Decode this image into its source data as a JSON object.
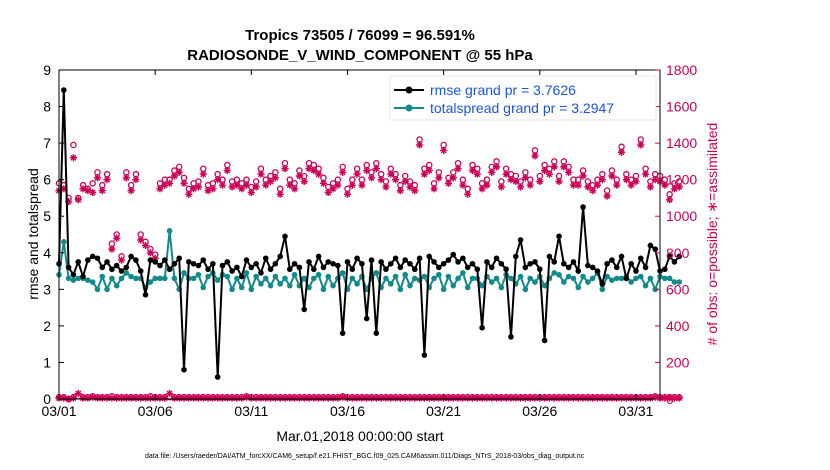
{
  "chart_data": {
    "type": "line",
    "title_line1": "Tropics 73505 / 76099 = 96.591%",
    "title_line2": "RADIOSONDE_V_WIND_COMPONENT @ 55 hPa",
    "xlabel": "Mar.01,2018 00:00:00 start",
    "ylabel": "rmse and totalspread",
    "ylabel_right": "# of obs: o=possible; ∗=assimilated",
    "footnote": "data file: /Users/raeder/DAI/ATM_forcXX/CAM6_setup/f.e21.FHIST_BGC.f09_025.CAM6assim.011/Diags_NTrS_2018-03/obs_diag_output.nc",
    "xlim": [
      1,
      32.25
    ],
    "ylim": [
      0,
      9
    ],
    "ylim_right": [
      0,
      1800
    ],
    "x_ticks": [
      1,
      6,
      11,
      16,
      21,
      26,
      31
    ],
    "x_tick_labels": [
      "03/01",
      "03/06",
      "03/11",
      "03/16",
      "03/21",
      "03/26",
      "03/31"
    ],
    "y_ticks": [
      0,
      1,
      2,
      3,
      4,
      5,
      6,
      7,
      8,
      9
    ],
    "y_ticks_right": [
      0,
      200,
      400,
      600,
      800,
      1000,
      1200,
      1400,
      1600,
      1800
    ],
    "legend": [
      "rmse grand pr = 3.7626",
      "totalspread grand pr = 3.2947"
    ],
    "colors": {
      "rmse": "#000000",
      "spread": "#128a8a",
      "obs": "#cc0055"
    },
    "x_start": 1,
    "x_step": 0.25,
    "series": [
      {
        "name": "rmse",
        "values": [
          3.7,
          8.45,
          3.6,
          3.4,
          3.75,
          3.35,
          3.8,
          3.9,
          3.85,
          3.6,
          3.75,
          3.55,
          3.65,
          3.5,
          3.6,
          3.9,
          3.8,
          3.5,
          2.85,
          3.8,
          3.75,
          3.65,
          3.8,
          3.55,
          3.7,
          3.85,
          0.8,
          3.75,
          3.7,
          3.65,
          3.8,
          3.55,
          3.7,
          0.6,
          3.65,
          3.75,
          3.5,
          3.6,
          3.35,
          3.8,
          3.6,
          3.7,
          3.45,
          3.85,
          3.55,
          3.7,
          3.9,
          4.45,
          3.55,
          3.7,
          3.6,
          2.45,
          3.75,
          3.55,
          3.9,
          3.6,
          3.75,
          3.7,
          3.65,
          1.8,
          3.75,
          3.55,
          3.85,
          3.7,
          2.2,
          3.8,
          1.8,
          3.75,
          3.55,
          3.7,
          3.85,
          3.6,
          3.8,
          3.7,
          3.55,
          3.85,
          1.2,
          3.9,
          3.75,
          3.6,
          3.7,
          3.8,
          3.95,
          3.75,
          3.85,
          3.6,
          3.7,
          3.55,
          1.95,
          3.75,
          3.6,
          3.85,
          3.7,
          3.55,
          1.7,
          3.9,
          4.35,
          3.6,
          3.7,
          3.75,
          3.55,
          1.6,
          3.9,
          3.75,
          4.45,
          3.7,
          3.6,
          3.75,
          3.5,
          5.25,
          3.65,
          3.6,
          3.5,
          3.15,
          3.7,
          3.8,
          3.6,
          3.9,
          3.3,
          3.7,
          3.5,
          3.85,
          3.6,
          4.2,
          4.1,
          3.5,
          3.55,
          3.9,
          3.75,
          3.9
        ]
      },
      {
        "name": "totalspread",
        "values": [
          3.4,
          4.3,
          3.3,
          3.25,
          3.3,
          3.3,
          3.25,
          3.2,
          3.0,
          3.35,
          3.0,
          3.3,
          3.1,
          3.3,
          3.45,
          3.35,
          3.3,
          3.3,
          3.05,
          3.2,
          3.3,
          3.3,
          3.3,
          4.6,
          3.3,
          3.0,
          3.45,
          3.3,
          3.3,
          3.4,
          3.05,
          3.35,
          3.45,
          3.25,
          3.4,
          3.35,
          3.0,
          3.3,
          3.05,
          3.45,
          3.0,
          3.35,
          3.15,
          3.3,
          3.1,
          3.35,
          3.15,
          3.3,
          3.1,
          3.4,
          3.1,
          3.3,
          3.05,
          3.3,
          3.4,
          3.0,
          3.35,
          3.1,
          3.3,
          3.45,
          3.0,
          3.3,
          3.15,
          3.35,
          3.0,
          3.3,
          3.45,
          3.05,
          3.3,
          3.15,
          3.35,
          3.0,
          3.4,
          3.1,
          3.3,
          3.25,
          3.35,
          3.05,
          3.3,
          3.4,
          3.0,
          3.35,
          3.1,
          3.3,
          3.45,
          3.05,
          3.3,
          3.3,
          3.1,
          3.35,
          3.2,
          3.3,
          3.05,
          3.4,
          3.3,
          3.15,
          3.35,
          3.0,
          3.3,
          3.2,
          3.35,
          3.1,
          3.3,
          3.45,
          3.4,
          3.2,
          3.35,
          3.3,
          3.05,
          3.35,
          3.2,
          3.3,
          3.45,
          3.0,
          3.35,
          3.25,
          3.3,
          3.3,
          3.35,
          3.2,
          3.3,
          3.35,
          3.1,
          3.3,
          3.0,
          3.35,
          3.3,
          3.3,
          3.2,
          3.2
        ]
      },
      {
        "name": "obs_possible",
        "values": [
          1180,
          1170,
          1100,
          1390,
          1100,
          1170,
          1150,
          1180,
          1240,
          1170,
          1230,
          850,
          900,
          780,
          1240,
          1170,
          1230,
          900,
          860,
          820,
          790,
          1180,
          1200,
          1200,
          1250,
          1270,
          1210,
          1150,
          1180,
          1190,
          1260,
          1170,
          1180,
          1230,
          1200,
          1280,
          1190,
          1200,
          1180,
          1200,
          1160,
          1190,
          1260,
          1200,
          1220,
          1240,
          1150,
          1290,
          1200,
          1180,
          1250,
          1220,
          1290,
          1280,
          1260,
          1210,
          1160,
          1180,
          1200,
          1270,
          1150,
          1200,
          1260,
          1200,
          1280,
          1240,
          1290,
          1230,
          1190,
          1260,
          1230,
          1170,
          1220,
          1190,
          1170,
          1420,
          1260,
          1280,
          1180,
          1240,
          1390,
          1210,
          1240,
          1290,
          1200,
          1150,
          1280,
          1260,
          1180,
          1200,
          1270,
          1300,
          1190,
          1260,
          1230,
          1220,
          1190,
          1240,
          1200,
          1360,
          1220,
          1280,
          1260,
          1300,
          1220,
          1300,
          1270,
          1200,
          1200,
          1250,
          1190,
          1170,
          1200,
          1230,
          1140,
          1250,
          1200,
          1380,
          1230,
          1200,
          1220,
          1420,
          1260,
          1190,
          1230,
          1220,
          1200,
          1120,
          1180,
          1190
        ]
      },
      {
        "name": "obs_assimilated",
        "values": [
          1140,
          1150,
          1080,
          1320,
          1090,
          1150,
          1140,
          1130,
          1210,
          1140,
          1200,
          820,
          880,
          760,
          1210,
          1140,
          1200,
          870,
          840,
          800,
          770,
          1150,
          1170,
          1180,
          1220,
          1240,
          1180,
          1120,
          1150,
          1160,
          1230,
          1140,
          1150,
          1200,
          1170,
          1250,
          1160,
          1170,
          1150,
          1170,
          1130,
          1160,
          1230,
          1170,
          1190,
          1210,
          1120,
          1260,
          1170,
          1150,
          1220,
          1190,
          1260,
          1250,
          1230,
          1180,
          1130,
          1150,
          1170,
          1240,
          1120,
          1170,
          1230,
          1170,
          1250,
          1210,
          1260,
          1200,
          1160,
          1230,
          1200,
          1140,
          1190,
          1160,
          1140,
          1390,
          1230,
          1250,
          1150,
          1210,
          1360,
          1180,
          1210,
          1260,
          1170,
          1120,
          1250,
          1230,
          1150,
          1170,
          1240,
          1270,
          1160,
          1230,
          1200,
          1190,
          1160,
          1210,
          1170,
          1330,
          1190,
          1250,
          1230,
          1270,
          1190,
          1270,
          1240,
          1170,
          1170,
          1220,
          1160,
          1140,
          1170,
          1200,
          1110,
          1220,
          1170,
          1350,
          1200,
          1170,
          1190,
          1390,
          1230,
          1160,
          1200,
          1190,
          1170,
          1090,
          1150,
          1160
        ]
      },
      {
        "name": "obs_possible_low",
        "values": [
          10,
          10,
          0,
          10,
          15,
          10,
          10,
          15,
          10,
          10,
          10,
          15,
          10,
          10,
          10,
          10,
          10,
          10,
          10,
          15,
          10,
          10,
          10,
          10,
          10,
          10,
          10,
          10,
          10,
          10,
          10,
          10,
          10,
          10,
          10,
          10,
          10,
          10,
          10,
          15,
          10,
          10,
          10,
          10,
          10,
          10,
          10,
          10,
          10,
          10,
          10,
          10,
          10,
          10,
          10,
          10,
          10,
          10,
          10,
          15,
          10,
          10,
          10,
          10,
          10,
          10,
          10,
          10,
          10,
          10,
          10,
          10,
          10,
          10,
          10,
          10,
          10,
          10,
          10,
          10,
          10,
          10,
          10,
          10,
          10,
          10,
          10,
          10,
          10,
          10,
          10,
          10,
          10,
          10,
          10,
          10,
          10,
          10,
          10,
          10,
          10,
          10,
          10,
          10,
          10,
          10,
          10,
          10,
          10,
          10,
          10,
          10,
          10,
          10,
          10,
          10,
          10,
          10,
          10,
          10,
          10,
          10,
          10,
          10,
          15,
          10,
          10,
          10,
          10,
          10
        ]
      },
      {
        "name": "obs_assimilated_low",
        "values": [
          5,
          5,
          0,
          5,
          30,
          5,
          5,
          10,
          5,
          5,
          5,
          5,
          5,
          5,
          5,
          5,
          5,
          5,
          5,
          5,
          5,
          5,
          5,
          30,
          5,
          5,
          5,
          5,
          5,
          5,
          5,
          5,
          5,
          5,
          5,
          5,
          5,
          5,
          5,
          10,
          5,
          5,
          5,
          5,
          5,
          5,
          5,
          5,
          5,
          5,
          5,
          5,
          5,
          5,
          5,
          5,
          5,
          5,
          5,
          10,
          5,
          5,
          5,
          5,
          5,
          5,
          5,
          5,
          5,
          5,
          5,
          5,
          5,
          5,
          5,
          5,
          5,
          5,
          5,
          5,
          5,
          5,
          5,
          5,
          5,
          5,
          5,
          5,
          5,
          5,
          5,
          5,
          5,
          5,
          5,
          5,
          5,
          5,
          5,
          5,
          5,
          5,
          5,
          5,
          5,
          5,
          5,
          5,
          5,
          5,
          5,
          5,
          5,
          5,
          5,
          5,
          5,
          5,
          5,
          5,
          5,
          5,
          5,
          5,
          10,
          5,
          5,
          5,
          5,
          5
        ]
      }
    ]
  }
}
